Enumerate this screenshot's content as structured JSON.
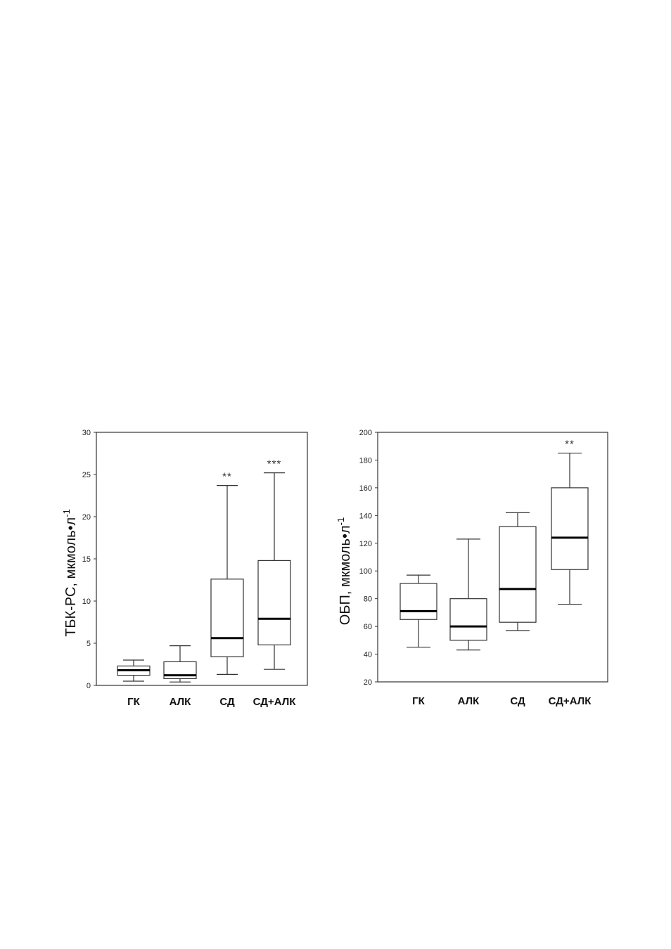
{
  "chart_data": [
    {
      "type": "boxplot",
      "ylabel": "ТБК-РС, мкмоль•л",
      "ylabel_sup": "-1",
      "ylim": [
        0,
        30
      ],
      "yticks": [
        0,
        5,
        10,
        15,
        20,
        25,
        30
      ],
      "categories": [
        "ГК",
        "АЛК",
        "СД",
        "СД+АЛК"
      ],
      "boxes": [
        {
          "min": 0.5,
          "q1": 1.2,
          "median": 1.8,
          "q3": 2.3,
          "max": 3.0,
          "annotation": ""
        },
        {
          "min": 0.4,
          "q1": 0.8,
          "median": 1.2,
          "q3": 2.8,
          "max": 4.7,
          "annotation": ""
        },
        {
          "min": 1.3,
          "q1": 3.4,
          "median": 5.6,
          "q3": 12.6,
          "max": 23.7,
          "annotation": "**"
        },
        {
          "min": 1.9,
          "q1": 4.8,
          "median": 7.9,
          "q3": 14.8,
          "max": 25.2,
          "annotation": "***"
        }
      ]
    },
    {
      "type": "boxplot",
      "ylabel": "ОБП, мкмоль•л",
      "ylabel_sup": "-1",
      "ylim": [
        20,
        200
      ],
      "yticks": [
        20,
        40,
        60,
        80,
        100,
        120,
        140,
        160,
        180,
        200
      ],
      "categories": [
        "ГК",
        "АЛК",
        "СД",
        "СД+АЛК"
      ],
      "boxes": [
        {
          "min": 45,
          "q1": 65,
          "median": 71,
          "q3": 91,
          "max": 97,
          "annotation": ""
        },
        {
          "min": 43,
          "q1": 50,
          "median": 60,
          "q3": 80,
          "max": 123,
          "annotation": ""
        },
        {
          "min": 57,
          "q1": 63,
          "median": 87,
          "q3": 132,
          "max": 142,
          "annotation": ""
        },
        {
          "min": 76,
          "q1": 101,
          "median": 124,
          "q3": 160,
          "max": 185,
          "annotation": "**"
        }
      ]
    }
  ]
}
